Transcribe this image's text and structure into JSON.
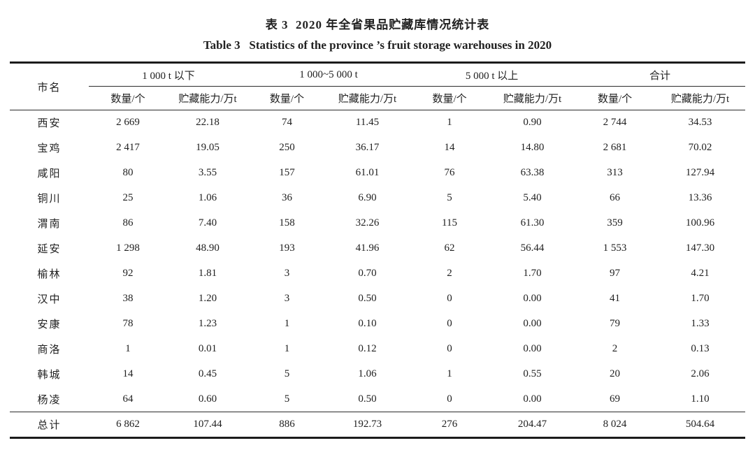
{
  "theme": {
    "ink_color": "#212121",
    "background_color": "#ffffff"
  },
  "caption": {
    "title_zh": "表 3  2020 年全省果品贮藏库情况统计表",
    "title_en": "Table 3   Statistics of the province ’s fruit storage warehouses in 2020"
  },
  "table": {
    "corner_header": "市名",
    "groups": [
      {
        "label": "1 000 t 以下"
      },
      {
        "label": "1 000~5 000 t"
      },
      {
        "label": "5 000 t 以上"
      },
      {
        "label": "合计"
      }
    ],
    "sub_headers": [
      "数量/个",
      "贮藏能力/万t"
    ],
    "rows": [
      {
        "city": "西安",
        "values": [
          "2 669",
          "22.18",
          "74",
          "11.45",
          "1",
          "0.90",
          "2 744",
          "34.53"
        ]
      },
      {
        "city": "宝鸡",
        "values": [
          "2 417",
          "19.05",
          "250",
          "36.17",
          "14",
          "14.80",
          "2 681",
          "70.02"
        ]
      },
      {
        "city": "咸阳",
        "values": [
          "80",
          "3.55",
          "157",
          "61.01",
          "76",
          "63.38",
          "313",
          "127.94"
        ]
      },
      {
        "city": "铜川",
        "values": [
          "25",
          "1.06",
          "36",
          "6.90",
          "5",
          "5.40",
          "66",
          "13.36"
        ]
      },
      {
        "city": "渭南",
        "values": [
          "86",
          "7.40",
          "158",
          "32.26",
          "115",
          "61.30",
          "359",
          "100.96"
        ]
      },
      {
        "city": "延安",
        "values": [
          "1 298",
          "48.90",
          "193",
          "41.96",
          "62",
          "56.44",
          "1 553",
          "147.30"
        ]
      },
      {
        "city": "榆林",
        "values": [
          "92",
          "1.81",
          "3",
          "0.70",
          "2",
          "1.70",
          "97",
          "4.21"
        ]
      },
      {
        "city": "汉中",
        "values": [
          "38",
          "1.20",
          "3",
          "0.50",
          "0",
          "0.00",
          "41",
          "1.70"
        ]
      },
      {
        "city": "安康",
        "values": [
          "78",
          "1.23",
          "1",
          "0.10",
          "0",
          "0.00",
          "79",
          "1.33"
        ]
      },
      {
        "city": "商洛",
        "values": [
          "1",
          "0.01",
          "1",
          "0.12",
          "0",
          "0.00",
          "2",
          "0.13"
        ]
      },
      {
        "city": "韩城",
        "values": [
          "14",
          "0.45",
          "5",
          "1.06",
          "1",
          "0.55",
          "20",
          "2.06"
        ]
      },
      {
        "city": "杨凌",
        "values": [
          "64",
          "0.60",
          "5",
          "0.50",
          "0",
          "0.00",
          "69",
          "1.10"
        ]
      }
    ],
    "total_row": {
      "city": "总计",
      "values": [
        "6 862",
        "107.44",
        "886",
        "192.73",
        "276",
        "204.47",
        "8 024",
        "504.64"
      ]
    }
  }
}
